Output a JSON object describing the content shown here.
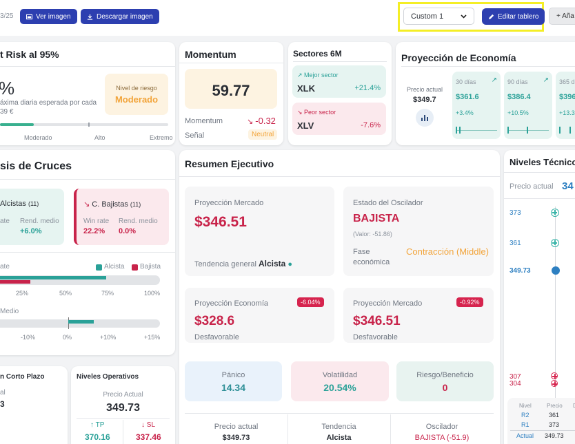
{
  "header": {
    "date_fragment": "3/25",
    "view_image": "Ver imagen",
    "download_image": "Descargar imagen",
    "layout_select": "Custom 1",
    "edit_board": "Editar tablero",
    "add_button": "+ Aña"
  },
  "var_card": {
    "title": "t Risk al 95%",
    "value": "%",
    "desc": "áxima diaria esperada por cada",
    "amount": "39 €",
    "risk_label": "Nivel de riesgo",
    "risk_value": "Moderado",
    "scale": [
      "Moderado",
      "Alto",
      "Extremo"
    ],
    "marker_fraction": 0.2
  },
  "momentum": {
    "title": "Momentum",
    "value": "59.77",
    "momentum_label": "Momentum",
    "momentum_change": "-0.32",
    "signal_label": "Señal",
    "signal_value": "Neutral"
  },
  "sectors": {
    "title": "Sectores 6M",
    "best_label": "Mejor sector",
    "best_ticker": "XLK",
    "best_change": "+21.4%",
    "worst_label": "Peor sector",
    "worst_ticker": "XLV",
    "worst_change": "-7.6%"
  },
  "economy": {
    "title": "Proyección de Economía",
    "current_label": "Precio actual",
    "current_value": "$349.7",
    "horizons": [
      {
        "label": "30 días",
        "value": "$361.6",
        "change": "+3.4%"
      },
      {
        "label": "90 días",
        "value": "$386.4",
        "change": "+10.5%"
      },
      {
        "label": "365 dí",
        "value": "$396",
        "change": "+13.3"
      }
    ]
  },
  "crosses": {
    "title": "sis de Cruces",
    "bull_title": "Alcistas",
    "bull_count": "(11)",
    "bull_winrate_label": "ate",
    "bull_avg_label": "Rend. medio",
    "bull_winrate": "",
    "bull_avg": "+6.0%",
    "bear_title": "C. Bajistas",
    "bear_count": "(11)",
    "bear_winrate_label": "Win rate",
    "bear_avg_label": "Rend. medio",
    "bear_winrate": "22.2%",
    "bear_avg": "0.0%",
    "winrate_axis_label": "ate",
    "legend_bull": "Alcista",
    "legend_bear": "Bajista",
    "winrate_ticks": [
      "25%",
      "50%",
      "75%",
      "100%"
    ],
    "bull_winrate_value": 0.677,
    "bear_winrate_value": 0.222,
    "return_axis_label": "Medio",
    "return_ticks": [
      "-10%",
      "0%",
      "+10%",
      "+15%"
    ],
    "bull_return_value": 6.0,
    "bear_return_value": 0.0
  },
  "exec": {
    "title": "Resumen Ejecutivo",
    "market_label": "Proyección Mercado",
    "market_value": "$346.51",
    "trend_label": "Tendencia general",
    "trend_value": "Alcista",
    "osc_label": "Estado del Oscilador",
    "osc_value": "BAJISTA",
    "osc_detail": "(Valor: -51.86)",
    "phase_label": "Fase económica",
    "phase_value": "Contracción (Middle)",
    "econ_proj_label": "Proyección Economía",
    "econ_proj_badge": "-6.04%",
    "econ_proj_value": "$328.6",
    "econ_proj_status": "Desfavorable",
    "mkt_proj_label": "Proyección Mercado",
    "mkt_proj_badge": "-0.92%",
    "mkt_proj_value": "$346.51",
    "mkt_proj_status": "Desfavorable",
    "panic_label": "Pánico",
    "panic_value": "14.34",
    "vol_label": "Volatilidad",
    "vol_value": "20.54%",
    "rr_label": "Riesgo/Beneficio",
    "rr_value": "0",
    "footer_price_label": "Precio actual",
    "footer_price_value": "$349.73",
    "footer_trend_label": "Tendencia",
    "footer_trend_value": "Alcista",
    "footer_osc_label": "Oscilador",
    "footer_osc_value": "BAJISTA (-51.9)"
  },
  "short_term": {
    "title": "n Corto Plazo",
    "label": "al",
    "value": "3"
  },
  "operative": {
    "title": "Niveles Operativos",
    "price_label": "Precio Actual",
    "price_value": "349.73",
    "tp_label": "TP",
    "tp_value": "370.16",
    "sl_label": "SL",
    "sl_value": "337.46"
  },
  "technical": {
    "title": "Niveles Técnico",
    "price_label": "Precio actual",
    "price_value": "34",
    "levels_top": [
      "373",
      "361"
    ],
    "current_level": "349.73",
    "levels_bottom": [
      "307",
      "304"
    ],
    "table_head": [
      "Nivel",
      "Precio",
      "D"
    ],
    "table_rows": [
      {
        "level": "R2",
        "price": "361"
      },
      {
        "level": "R1",
        "price": "373"
      }
    ],
    "current_row_label": "Actual",
    "current_row_value": "349.73"
  },
  "colors": {
    "accent": "#2d3fb0",
    "bull": "#2aa198",
    "bear": "#c8234a",
    "warning": "#f2a43a",
    "highlight": "#f4ee26"
  }
}
